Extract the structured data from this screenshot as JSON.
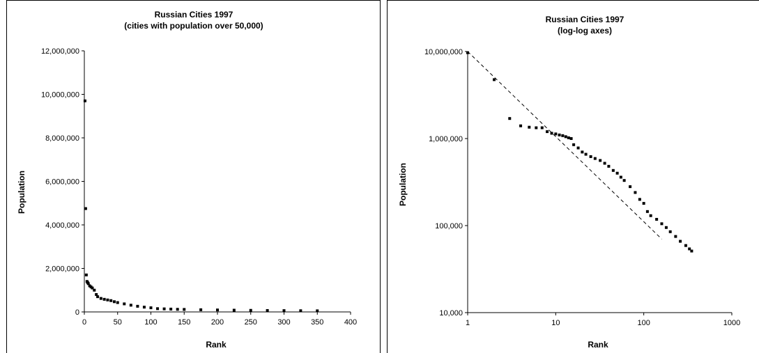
{
  "chart_data": [
    {
      "type": "scatter",
      "title": "Russian Cities 1997",
      "subtitle": "(cities with population over 50,000)",
      "xlabel": "Rank",
      "ylabel": "Population",
      "xlim": [
        0,
        400
      ],
      "ylim": [
        0,
        12000000
      ],
      "x_ticks": [
        "0",
        "50",
        "100",
        "150",
        "200",
        "250",
        "300",
        "350",
        "400"
      ],
      "y_ticks": [
        "0",
        "2,000,000",
        "4,000,000",
        "6,000,000",
        "8,000,000",
        "10,000,000",
        "12,000,000"
      ],
      "grid": false,
      "legend": false,
      "marker_color": "#000000",
      "points": [
        [
          1,
          9700000
        ],
        [
          2,
          4750000
        ],
        [
          3,
          1700000
        ],
        [
          4,
          1400000
        ],
        [
          5,
          1350000
        ],
        [
          6,
          1300000
        ],
        [
          8,
          1200000
        ],
        [
          10,
          1150000
        ],
        [
          12,
          1100000
        ],
        [
          15,
          1000000
        ],
        [
          18,
          800000
        ],
        [
          20,
          700000
        ],
        [
          25,
          620000
        ],
        [
          30,
          580000
        ],
        [
          35,
          550000
        ],
        [
          40,
          520000
        ],
        [
          45,
          470000
        ],
        [
          50,
          430000
        ],
        [
          60,
          370000
        ],
        [
          70,
          310000
        ],
        [
          80,
          260000
        ],
        [
          90,
          220000
        ],
        [
          100,
          190000
        ],
        [
          110,
          150000
        ],
        [
          120,
          140000
        ],
        [
          130,
          130000
        ],
        [
          140,
          120000
        ],
        [
          150,
          115000
        ],
        [
          175,
          100000
        ],
        [
          200,
          90000
        ],
        [
          225,
          80000
        ],
        [
          250,
          72000
        ],
        [
          275,
          65000
        ],
        [
          300,
          60000
        ],
        [
          325,
          55000
        ],
        [
          350,
          51000
        ]
      ]
    },
    {
      "type": "scatter",
      "title": "Russian Cities 1997",
      "subtitle": "(log-log axes)",
      "xlabel": "Rank",
      "ylabel": "Population",
      "xscale": "log",
      "yscale": "log",
      "xlim": [
        1,
        1000
      ],
      "ylim": [
        10000,
        10000000
      ],
      "x_ticks": [
        "1",
        "10",
        "100",
        "1000"
      ],
      "y_ticks": [
        "10,000",
        "100,000",
        "1,000,000",
        "10,000,000"
      ],
      "grid": false,
      "legend": false,
      "marker_color": "#000000",
      "points": [
        [
          1,
          9700000
        ],
        [
          2,
          4750000
        ],
        [
          3,
          1700000
        ],
        [
          4,
          1400000
        ],
        [
          5,
          1350000
        ],
        [
          6,
          1330000
        ],
        [
          7,
          1330000
        ],
        [
          8,
          1200000
        ],
        [
          9,
          1150000
        ],
        [
          10,
          1130000
        ],
        [
          11,
          1100000
        ],
        [
          12,
          1080000
        ],
        [
          13,
          1050000
        ],
        [
          14,
          1020000
        ],
        [
          15,
          1000000
        ],
        [
          16,
          850000
        ],
        [
          18,
          780000
        ],
        [
          20,
          700000
        ],
        [
          22,
          660000
        ],
        [
          25,
          620000
        ],
        [
          28,
          590000
        ],
        [
          32,
          560000
        ],
        [
          36,
          520000
        ],
        [
          40,
          480000
        ],
        [
          45,
          430000
        ],
        [
          50,
          400000
        ],
        [
          55,
          360000
        ],
        [
          60,
          330000
        ],
        [
          70,
          280000
        ],
        [
          80,
          240000
        ],
        [
          90,
          200000
        ],
        [
          100,
          180000
        ],
        [
          110,
          145000
        ],
        [
          120,
          130000
        ],
        [
          140,
          118000
        ],
        [
          160,
          105000
        ],
        [
          180,
          95000
        ],
        [
          200,
          85000
        ],
        [
          230,
          75000
        ],
        [
          260,
          66000
        ],
        [
          300,
          59000
        ],
        [
          330,
          54000
        ],
        [
          350,
          51000
        ]
      ],
      "trend_line": {
        "style": "dashed",
        "x": [
          1,
          160
        ],
        "y": [
          10000000,
          70000
        ]
      }
    }
  ]
}
